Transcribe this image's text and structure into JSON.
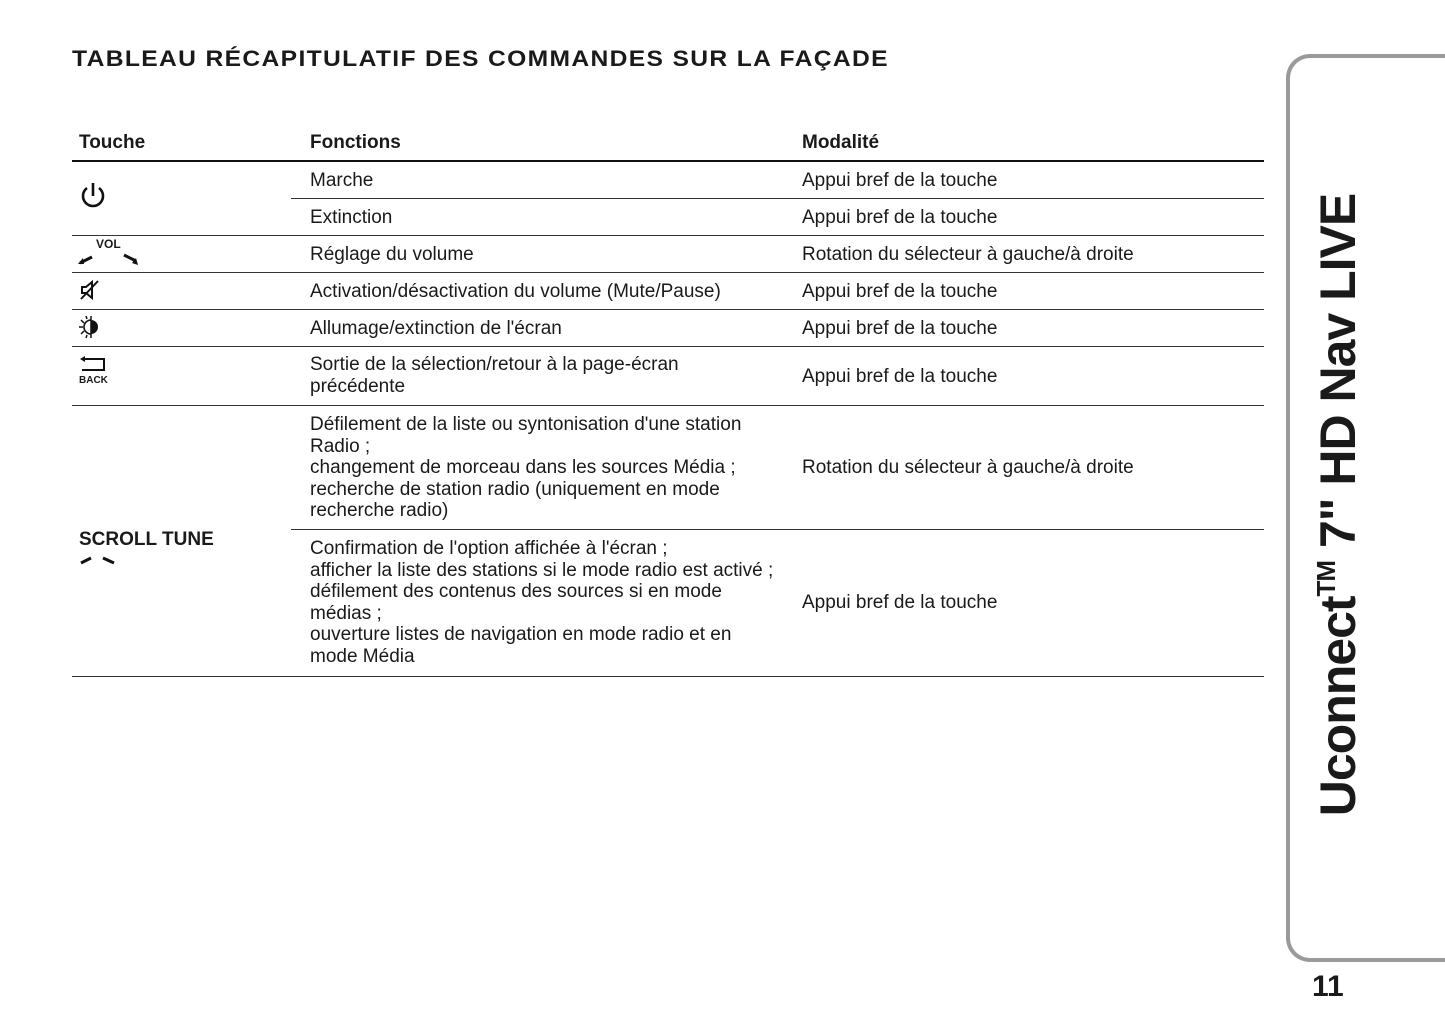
{
  "title": "TABLEAU RÉCAPITULATIF DES COMMANDES SUR LA FAÇADE",
  "table": {
    "headers": [
      "Touche",
      "Fonctions",
      "Modalité"
    ],
    "rows": [
      {
        "key_icon": "power-icon",
        "function": "Marche",
        "mode": "Appui bref de la touche"
      },
      {
        "key_icon": "power-icon",
        "function": "Extinction",
        "mode": "Appui bref de la touche"
      },
      {
        "key_icon": "volume-knob-icon",
        "key_label": "VOL",
        "function": "Réglage du volume",
        "mode": "Rotation du sélecteur à gauche/à droite"
      },
      {
        "key_icon": "mute-icon",
        "function": "Activation/désactivation du volume (Mute/Pause)",
        "mode": "Appui bref de la touche"
      },
      {
        "key_icon": "screen-brightness-icon",
        "function": "Allumage/extinction de l'écran",
        "mode": "Appui bref de la touche"
      },
      {
        "key_icon": "back-icon",
        "key_label": "BACK",
        "function": "Sortie de la sélection/retour à la page-écran\nprécédente",
        "mode": "Appui bref de la touche"
      },
      {
        "key_label": "SCROLL TUNE",
        "key_icon": "scroll-knob-icon",
        "function": "Défilement de la liste ou syntonisation d'une station\nRadio ;\nchangement de morceau dans les sources Média ;\nrecherche de station radio (uniquement en mode\nrecherche radio)",
        "mode": "Rotation du sélecteur à gauche/à droite"
      },
      {
        "key_label": "SCROLL TUNE",
        "function": "Confirmation de l'option affichée à l'écran ;\nafficher la liste des stations si le mode radio est activé ;\ndéfilement des contenus des sources si en mode\nmédias ;\nouverture listes de navigation en mode radio et en\nmode Média",
        "mode": "Appui bref de la touche"
      }
    ]
  },
  "side_tab": {
    "title": "Uconnect",
    "tm": "TM",
    "title_rest": " 7\" HD Nav LIVE"
  },
  "page_number": "11"
}
